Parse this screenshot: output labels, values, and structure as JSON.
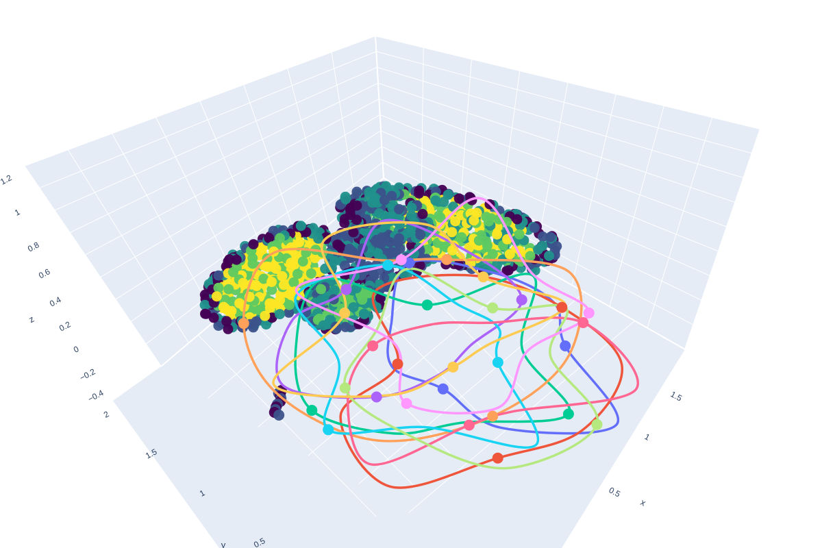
{
  "chart_data": {
    "type": "scatter3d",
    "title": "",
    "scene": {
      "bgcolor": "#E5ECF6",
      "gridcolor": "#ffffff",
      "xaxis": {
        "title": "x",
        "ticks": [
          "0.5",
          "1",
          "1.5"
        ]
      },
      "yaxis": {
        "title": "y",
        "ticks": [
          "0.5",
          "1",
          "1.5",
          "2"
        ]
      },
      "zaxis": {
        "title": "z",
        "ticks": [
          "−0.4",
          "−0.2",
          "0",
          "0.2",
          "0.4",
          "0.6",
          "0.8",
          "1",
          "1.2"
        ]
      }
    },
    "surface_points": {
      "colorscale": "Viridis",
      "colors": [
        "#440154",
        "#3b528b",
        "#21918c",
        "#5ec962",
        "#fde725"
      ]
    },
    "series": [
      {
        "color": "#636efa"
      },
      {
        "color": "#EF553B"
      },
      {
        "color": "#00cc96"
      },
      {
        "color": "#ab63fa"
      },
      {
        "color": "#FFA15A"
      },
      {
        "color": "#19d3f3"
      },
      {
        "color": "#FF6692"
      },
      {
        "color": "#B6E880"
      },
      {
        "color": "#FF97FF"
      },
      {
        "color": "#FECB52"
      }
    ]
  }
}
